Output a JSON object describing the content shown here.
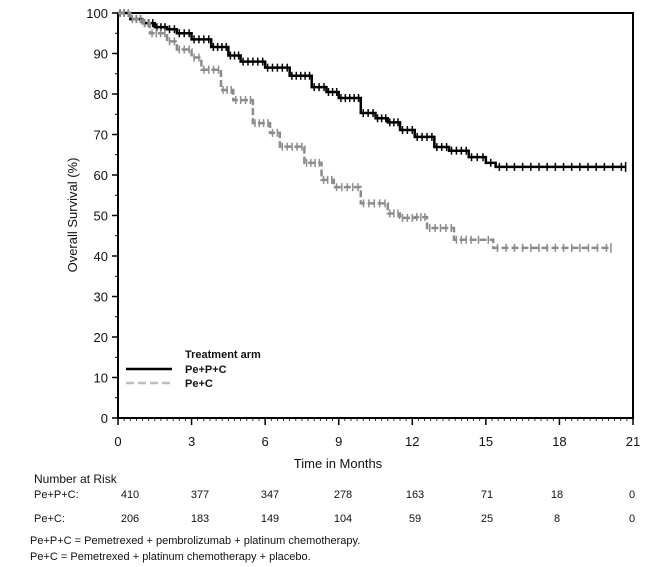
{
  "chart_data": {
    "type": "line",
    "subtype": "kaplan-meier",
    "title": "",
    "xlabel": "Time in Months",
    "ylabel": "Overall Survival (%)",
    "xlim": [
      0,
      21
    ],
    "ylim": [
      0,
      100
    ],
    "x_ticks": [
      0,
      3,
      6,
      9,
      12,
      15,
      18,
      21
    ],
    "y_ticks": [
      0,
      10,
      20,
      30,
      40,
      50,
      60,
      70,
      80,
      90,
      100
    ],
    "grid": false,
    "legend": {
      "title": "Treatment arm",
      "placement": "bottom-left"
    },
    "series": [
      {
        "name": "Pe+P+C",
        "color": "#000000",
        "style": "solid",
        "x": [
          0,
          0.5,
          1,
          1.5,
          2,
          2.4,
          3,
          3.8,
          4.5,
          5,
          6,
          7,
          7.9,
          8.5,
          9,
          9.9,
          10.5,
          11,
          11.5,
          12.1,
          12.9,
          13.5,
          14.3,
          15,
          15.4,
          16,
          17,
          18,
          19,
          20,
          20.7
        ],
        "y": [
          100,
          98.5,
          97.5,
          96.5,
          96,
          95,
          93.5,
          91.6,
          89.5,
          88,
          86.5,
          84.5,
          81.7,
          80.5,
          79,
          75.3,
          74,
          73,
          71.1,
          69.4,
          66.9,
          66,
          64.4,
          63,
          62,
          62,
          62,
          62,
          62,
          62,
          62
        ]
      },
      {
        "name": "Pe+C",
        "color": "#8c8c8c",
        "style": "dashed",
        "x": [
          0,
          0.5,
          1,
          1.3,
          2,
          2.4,
          3,
          3.4,
          4.2,
          4.7,
          5.5,
          6.2,
          6.6,
          7.6,
          8.3,
          8.8,
          9.9,
          11,
          11.5,
          12.1,
          12.6,
          13.7,
          14.5,
          15.3,
          16,
          17,
          18,
          19,
          20.1
        ],
        "y": [
          100,
          98.5,
          97.5,
          95,
          93,
          91,
          89,
          86,
          81,
          78.5,
          72.8,
          70.4,
          67,
          63,
          58.8,
          57,
          53,
          50.5,
          49.4,
          49.6,
          46.9,
          44,
          44,
          42,
          42,
          42,
          42,
          42,
          42
        ]
      }
    ],
    "number_at_risk": {
      "title": "Number at Risk",
      "times": [
        0,
        3,
        6,
        9,
        12,
        15,
        18,
        21
      ],
      "rows": [
        {
          "label": "Pe+P+C:",
          "values": [
            "410",
            "377",
            "347",
            "278",
            "163",
            "71",
            "18",
            "0"
          ]
        },
        {
          "label": "Pe+C:",
          "values": [
            "206",
            "183",
            "149",
            "104",
            "59",
            "25",
            "8",
            "0"
          ]
        }
      ]
    }
  },
  "footnotes": [
    "Pe+P+C = Pemetrexed + pembrolizumab + platinum chemotherapy.",
    "Pe+C = Pemetrexed + platinum chemotherapy + placebo."
  ]
}
